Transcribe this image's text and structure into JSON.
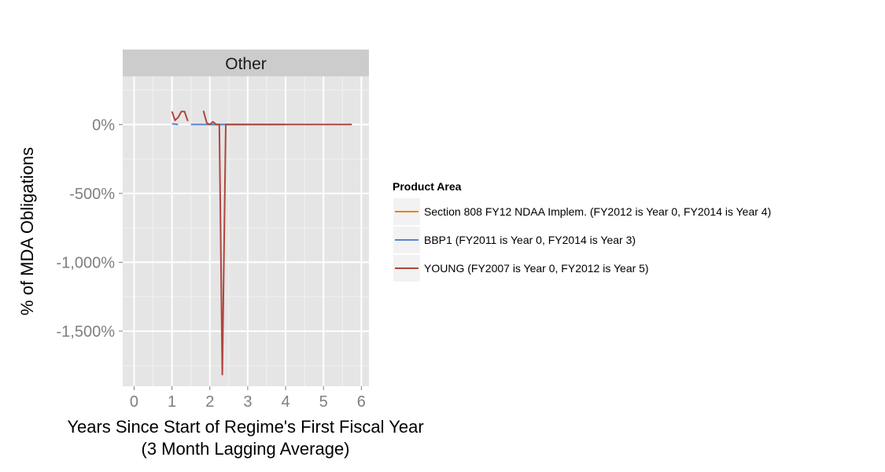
{
  "chart_data": {
    "type": "line",
    "facet": "Other",
    "xlabel": "Years Since Start of Regime's First Fiscal Year",
    "xlabel2": "(3 Month Lagging Average)",
    "ylabel": "% of MDA Obligations",
    "xlim": [
      -0.3,
      6.2
    ],
    "ylim": [
      -1900,
      350
    ],
    "x_ticks": [
      0,
      1,
      2,
      3,
      4,
      5,
      6
    ],
    "x_tick_labels": [
      "0",
      "1",
      "2",
      "3",
      "4",
      "5",
      "6"
    ],
    "y_ticks": [
      0,
      -500,
      -1000,
      -1500
    ],
    "y_tick_labels": [
      "0%",
      "-500%",
      "-1,000%",
      "-1,500%"
    ],
    "grid": true,
    "legend": {
      "title": "Product Area",
      "position": "right"
    },
    "series": [
      {
        "name": "Section 808 FY12 NDAA Implem. (FY2012 is Year 0, FY2014 is Year 4)",
        "color": "#e8830f",
        "segments": [
          [
            [
              2.0,
              0
            ],
            [
              2.25,
              0
            ],
            [
              2.5,
              0
            ],
            [
              2.75,
              0
            ],
            [
              3.0,
              0
            ]
          ]
        ]
      },
      {
        "name": "BBP1 (FY2011 is Year 0, FY2014 is Year 3)",
        "color": "#5a86cd",
        "segments": [
          [
            [
              1.0,
              5
            ],
            [
              1.08,
              3
            ],
            [
              1.16,
              0
            ]
          ],
          [
            [
              1.5,
              0
            ],
            [
              1.58,
              0
            ],
            [
              1.67,
              0
            ],
            [
              1.75,
              0
            ],
            [
              1.83,
              0
            ],
            [
              1.92,
              0
            ],
            [
              2.0,
              0
            ],
            [
              2.5,
              0
            ],
            [
              3.0,
              0
            ],
            [
              3.5,
              0
            ],
            [
              4.0,
              0
            ]
          ]
        ]
      },
      {
        "name": "YOUNG (FY2007 is Year 0, FY2012 is Year 5)",
        "color": "#b0463d",
        "segments": [
          [
            [
              1.0,
              95
            ],
            [
              1.08,
              30
            ],
            [
              1.17,
              55
            ],
            [
              1.25,
              95
            ],
            [
              1.33,
              95
            ],
            [
              1.42,
              25
            ]
          ],
          [
            [
              1.83,
              100
            ],
            [
              1.92,
              10
            ],
            [
              2.0,
              0
            ],
            [
              2.08,
              20
            ],
            [
              2.17,
              0
            ],
            [
              2.25,
              0
            ],
            [
              2.33,
              -1815
            ],
            [
              2.42,
              0
            ],
            [
              2.5,
              0
            ],
            [
              3.0,
              0
            ],
            [
              4.0,
              0
            ],
            [
              5.0,
              0
            ],
            [
              5.5,
              0
            ],
            [
              5.75,
              0
            ]
          ]
        ]
      }
    ]
  }
}
